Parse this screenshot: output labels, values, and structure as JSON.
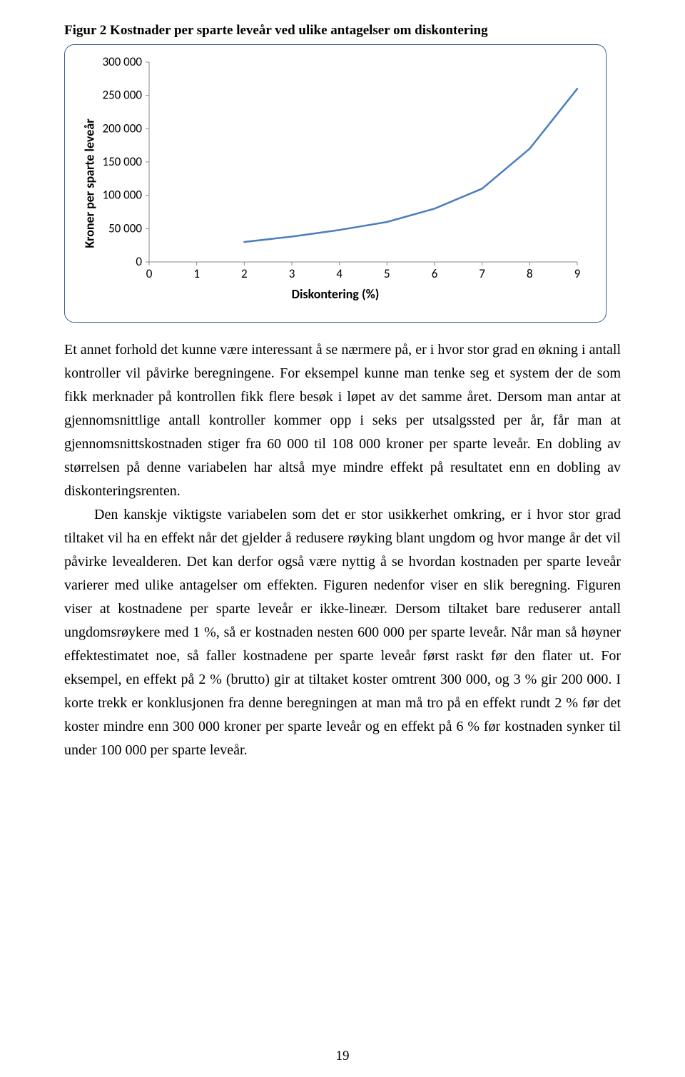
{
  "figure": {
    "title": "Figur 2 Kostnader per sparte leveår ved ulike antagelser om diskontering",
    "ylabel": "Kroner per sparte leveår",
    "xlabel": "Diskontering (%)",
    "x_values": [
      0,
      1,
      2,
      3,
      4,
      5,
      6,
      7,
      8,
      9
    ],
    "y_values": [
      null,
      null,
      30000,
      38000,
      48000,
      60000,
      80000,
      110000,
      170000,
      260000
    ],
    "x_ticks": [
      0,
      1,
      2,
      3,
      4,
      5,
      6,
      7,
      8,
      9
    ],
    "y_ticks": [
      0,
      50000,
      100000,
      150000,
      200000,
      250000,
      300000
    ],
    "y_tick_labels": [
      "0",
      "50 000",
      "100 000",
      "150 000",
      "200 000",
      "250 000",
      "300 000"
    ],
    "xlim": [
      0,
      9
    ],
    "ylim": [
      0,
      300000
    ],
    "line_color": "#4a7ebb",
    "line_width": 2.5,
    "axis_color": "#888888",
    "tick_color": "#888888",
    "tick_font_size": 17,
    "label_font_size": 18,
    "frame_border_color": "#385d8a",
    "background_color": "#ffffff"
  },
  "paragraphs": {
    "p1": "Et annet forhold det kunne være interessant å se nærmere på, er i hvor stor grad en økning i antall kontroller vil påvirke beregningene. For eksempel kunne man tenke seg et system der de som fikk merknader på kontrollen fikk flere besøk i løpet av det samme året. Dersom man antar at gjennomsnittlige antall kontroller kommer opp i seks per utsalgssted per år, får man at gjennomsnittskostnaden stiger fra 60 000 til 108 000 kroner per sparte leveår. En dobling av størrelsen på denne variabelen har altså mye mindre effekt på resultatet enn en dobling av diskonteringsrenten.",
    "p2": "Den kanskje viktigste variabelen som det er stor usikkerhet omkring, er i hvor stor grad tiltaket vil ha en effekt når det gjelder å redusere røyking blant ungdom og hvor mange år det vil påvirke levealderen. Det kan derfor også være nyttig å se hvordan kostnaden per sparte leveår varierer med ulike antagelser om effekten. Figuren nedenfor viser en slik beregning. Figuren viser at kostnadene per sparte leveår er ikke-lineær. Dersom tiltaket bare reduserer antall ungdomsrøykere med 1 %, så er kostnaden nesten 600 000 per sparte leveår. Når man så høyner effektestimatet noe, så faller kostnadene per sparte leveår først raskt før den flater ut. For eksempel, en effekt på 2 % (brutto) gir at tiltaket koster omtrent 300 000, og 3 % gir 200 000. I korte trekk er konklusjonen fra denne beregningen at man må tro på en effekt rundt 2 % før det koster mindre enn 300 000 kroner per sparte leveår og en effekt på 6 % før kostnaden synker til under 100 000 per sparte leveår."
  },
  "page_number": "19"
}
